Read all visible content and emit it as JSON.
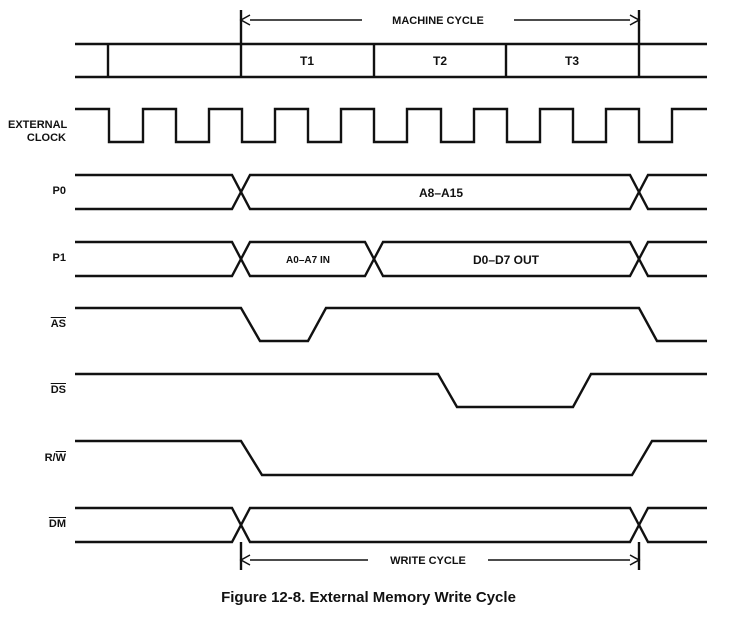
{
  "timing": {
    "machine_cycle": "MACHINE CYCLE",
    "states": [
      "T1",
      "T2",
      "T3"
    ],
    "write_cycle": "WRITE CYCLE"
  },
  "signals": {
    "clock_line1": "EXTERNAL",
    "clock_line2": "CLOCK",
    "p0": "P0",
    "p1": "P1",
    "as": "AS",
    "ds": "DS",
    "rw_prefix": "R/",
    "rw_bar": "W",
    "dm": "DM"
  },
  "bus_labels": {
    "p0_address": "A8–A15",
    "p1_address": "A0–A7 IN",
    "p1_data": "D0–D7 OUT"
  },
  "caption": "Figure 12-8. External Memory Write Cycle"
}
